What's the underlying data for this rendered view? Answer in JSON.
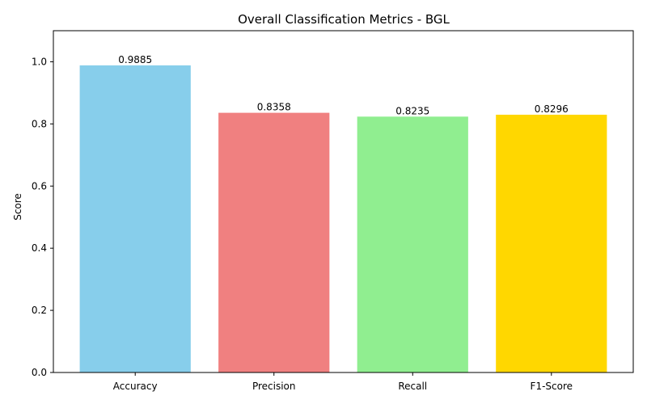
{
  "chart_data": {
    "type": "bar",
    "title": "Overall Classification Metrics - BGL",
    "xlabel": "",
    "ylabel": "Score",
    "categories": [
      "Accuracy",
      "Precision",
      "Recall",
      "F1-Score"
    ],
    "values": [
      0.9885,
      0.8358,
      0.8235,
      0.8296
    ],
    "value_labels": [
      "0.9885",
      "0.8358",
      "0.8235",
      "0.8296"
    ],
    "colors": [
      "#87ceeb",
      "#f08080",
      "#90ee90",
      "#ffd700"
    ],
    "ylim": [
      0,
      1.1
    ],
    "yticks": [
      0.0,
      0.2,
      0.4,
      0.6,
      0.8,
      1.0
    ],
    "ytick_labels": [
      "0.0",
      "0.2",
      "0.4",
      "0.6",
      "0.8",
      "1.0"
    ],
    "grid": false,
    "legend": "none"
  }
}
